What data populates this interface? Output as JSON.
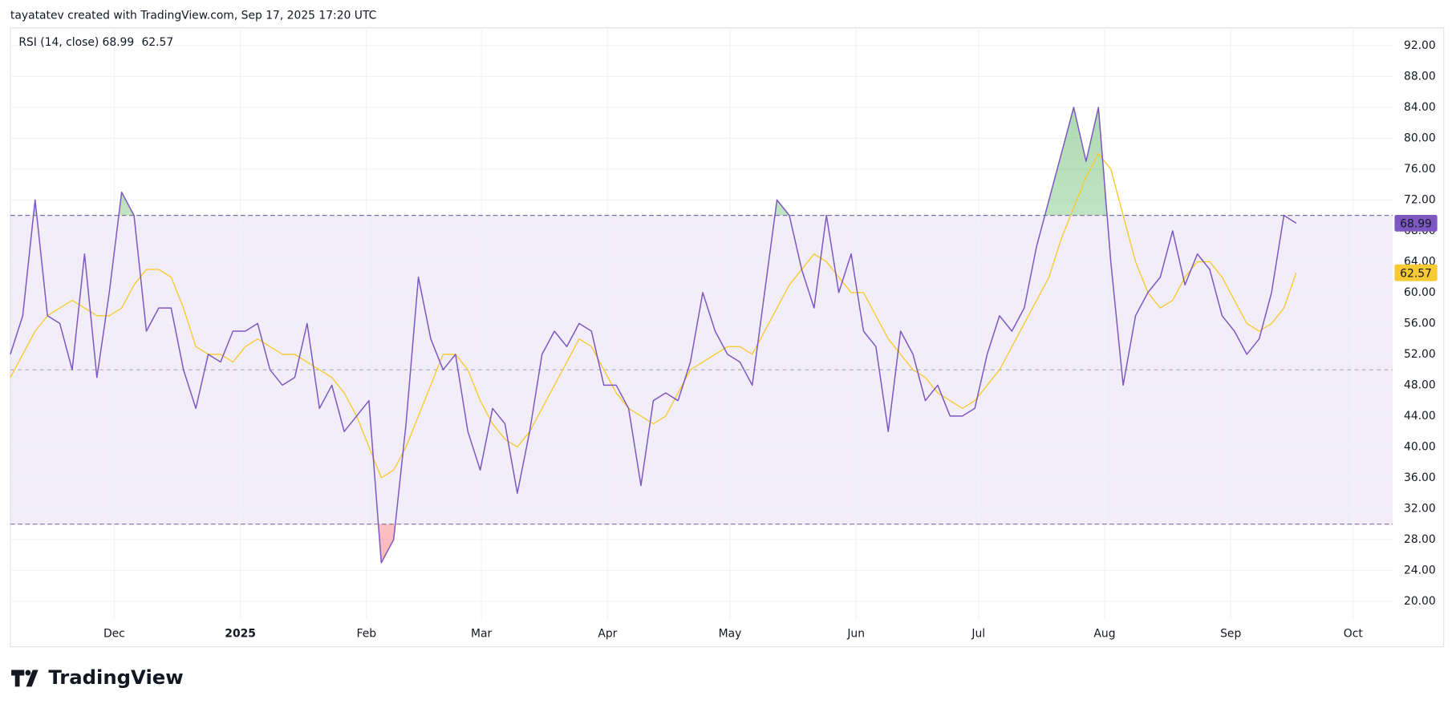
{
  "header": "tayatatev created with TradingView.com, Sep 17, 2025 17:20 UTC",
  "footer": {
    "brand": "TradingView"
  },
  "chart_data": {
    "type": "line",
    "title": "RSI (14, close)",
    "series": [
      {
        "color": "#7e57c2",
        "values": [
          52,
          57,
          72,
          57,
          56,
          50,
          65,
          49,
          60,
          73,
          70,
          55,
          58,
          58,
          50,
          45,
          52,
          51,
          55,
          55,
          56,
          50,
          48,
          49,
          56,
          45,
          48,
          42,
          44,
          46,
          25,
          28,
          43,
          62,
          54,
          50,
          52,
          42,
          37,
          45,
          43,
          34,
          42,
          52,
          55,
          53,
          56,
          55,
          48,
          48,
          45,
          35,
          46,
          47,
          46,
          51,
          60,
          55,
          52,
          51,
          48,
          60,
          72,
          70,
          63,
          58,
          70,
          60,
          65,
          55,
          53,
          42,
          55,
          52,
          46,
          48,
          44,
          44,
          45,
          52,
          57,
          55,
          58,
          66,
          72,
          78,
          84,
          77,
          84,
          64,
          48,
          57,
          60,
          62,
          68,
          61,
          65,
          63,
          57,
          55,
          52,
          54,
          60,
          70,
          68.99
        ]
      },
      {
        "color": "#f7c932",
        "values": [
          49,
          52,
          55,
          57,
          58,
          59,
          58,
          57,
          57,
          58,
          61,
          63,
          63,
          62,
          58,
          53,
          52,
          52,
          51,
          53,
          54,
          53,
          52,
          52,
          51,
          50,
          49,
          47,
          44,
          40,
          36,
          37,
          40,
          44,
          48,
          52,
          52,
          50,
          46,
          43,
          41,
          40,
          42,
          45,
          48,
          51,
          54,
          53,
          50,
          47,
          45,
          44,
          43,
          44,
          47,
          50,
          51,
          52,
          53,
          53,
          52,
          55,
          58,
          61,
          63,
          65,
          64,
          62,
          60,
          60,
          57,
          54,
          52,
          50,
          49,
          47,
          46,
          45,
          46,
          48,
          50,
          53,
          56,
          59,
          62,
          67,
          71,
          75,
          78,
          76,
          70,
          64,
          60,
          58,
          59,
          62,
          64,
          64,
          62,
          59,
          56,
          55,
          56,
          58,
          62.57
        ]
      }
    ],
    "xlim": [
      0,
      111.8
    ],
    "xticks": [
      {
        "value": 8.4,
        "label": "Dec"
      },
      {
        "value": 18.6,
        "label": "2025"
      },
      {
        "value": 28.8,
        "label": "Feb"
      },
      {
        "value": 38.1,
        "label": "Mar"
      },
      {
        "value": 48.3,
        "label": "Apr"
      },
      {
        "value": 58.2,
        "label": "May"
      },
      {
        "value": 68.4,
        "label": "Jun"
      },
      {
        "value": 78.3,
        "label": "Jul"
      },
      {
        "value": 88.5,
        "label": "Aug"
      },
      {
        "value": 98.7,
        "label": "Sep"
      },
      {
        "value": 108.6,
        "label": "Oct"
      }
    ],
    "ylim": [
      17.6,
      94.3
    ],
    "yticks": [
      {
        "value": 20,
        "label": "20.00"
      },
      {
        "value": 24,
        "label": "24.00"
      },
      {
        "value": 28,
        "label": "28.00"
      },
      {
        "value": 32,
        "label": "32.00"
      },
      {
        "value": 36,
        "label": "36.00"
      },
      {
        "value": 40,
        "label": "40.00"
      },
      {
        "value": 44,
        "label": "44.00"
      },
      {
        "value": 48,
        "label": "48.00"
      },
      {
        "value": 52,
        "label": "52.00"
      },
      {
        "value": 56,
        "label": "56.00"
      },
      {
        "value": 60,
        "label": "60.00"
      },
      {
        "value": 64,
        "label": "64.00"
      },
      {
        "value": 68,
        "label": "68.00"
      },
      {
        "value": 72,
        "label": "72.00"
      },
      {
        "value": 76,
        "label": "76.00"
      },
      {
        "value": 80,
        "label": "80.00"
      },
      {
        "value": 84,
        "label": "84.00"
      },
      {
        "value": 88,
        "label": "88.00"
      },
      {
        "value": 92,
        "label": "92.00"
      }
    ],
    "bands": [
      30,
      50,
      70
    ],
    "grid": true
  }
}
